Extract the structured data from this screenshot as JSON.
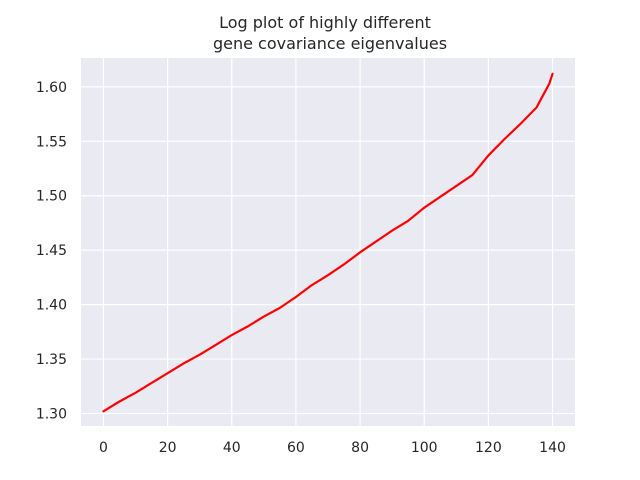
{
  "chart_data": {
    "type": "line",
    "title": "Log plot of highly different\ngene covariance eigenvalues",
    "title_lines": [
      "Log plot of highly different",
      "gene covariance eigenvalues"
    ],
    "xlabel": "",
    "ylabel": "",
    "xlim": [
      -7,
      147
    ],
    "ylim": [
      1.2885,
      1.6265
    ],
    "xticks": [
      0,
      20,
      40,
      60,
      80,
      100,
      120,
      140
    ],
    "xtick_labels": [
      "0",
      "20",
      "40",
      "60",
      "80",
      "100",
      "120",
      "140"
    ],
    "yticks": [
      1.3,
      1.35,
      1.4,
      1.45,
      1.5,
      1.55,
      1.6
    ],
    "ytick_labels": [
      "1.30",
      "1.35",
      "1.40",
      "1.45",
      "1.50",
      "1.55",
      "1.60"
    ],
    "grid": true,
    "background_color": "#eaeaf2",
    "grid_color": "#ffffff",
    "series": [
      {
        "color": "#ff0000",
        "x": [
          0,
          5,
          10,
          15,
          20,
          25,
          30,
          35,
          40,
          45,
          50,
          55,
          60,
          65,
          70,
          75,
          80,
          85,
          90,
          95,
          100,
          105,
          110,
          115,
          120,
          125,
          130,
          135,
          137,
          139,
          140
        ],
        "y": [
          1.302,
          1.311,
          1.319,
          1.328,
          1.337,
          1.346,
          1.354,
          1.363,
          1.372,
          1.38,
          1.389,
          1.397,
          1.407,
          1.418,
          1.427,
          1.437,
          1.448,
          1.458,
          1.468,
          1.477,
          1.489,
          1.499,
          1.509,
          1.519,
          1.537,
          1.552,
          1.566,
          1.581,
          1.592,
          1.603,
          1.612
        ]
      }
    ]
  }
}
